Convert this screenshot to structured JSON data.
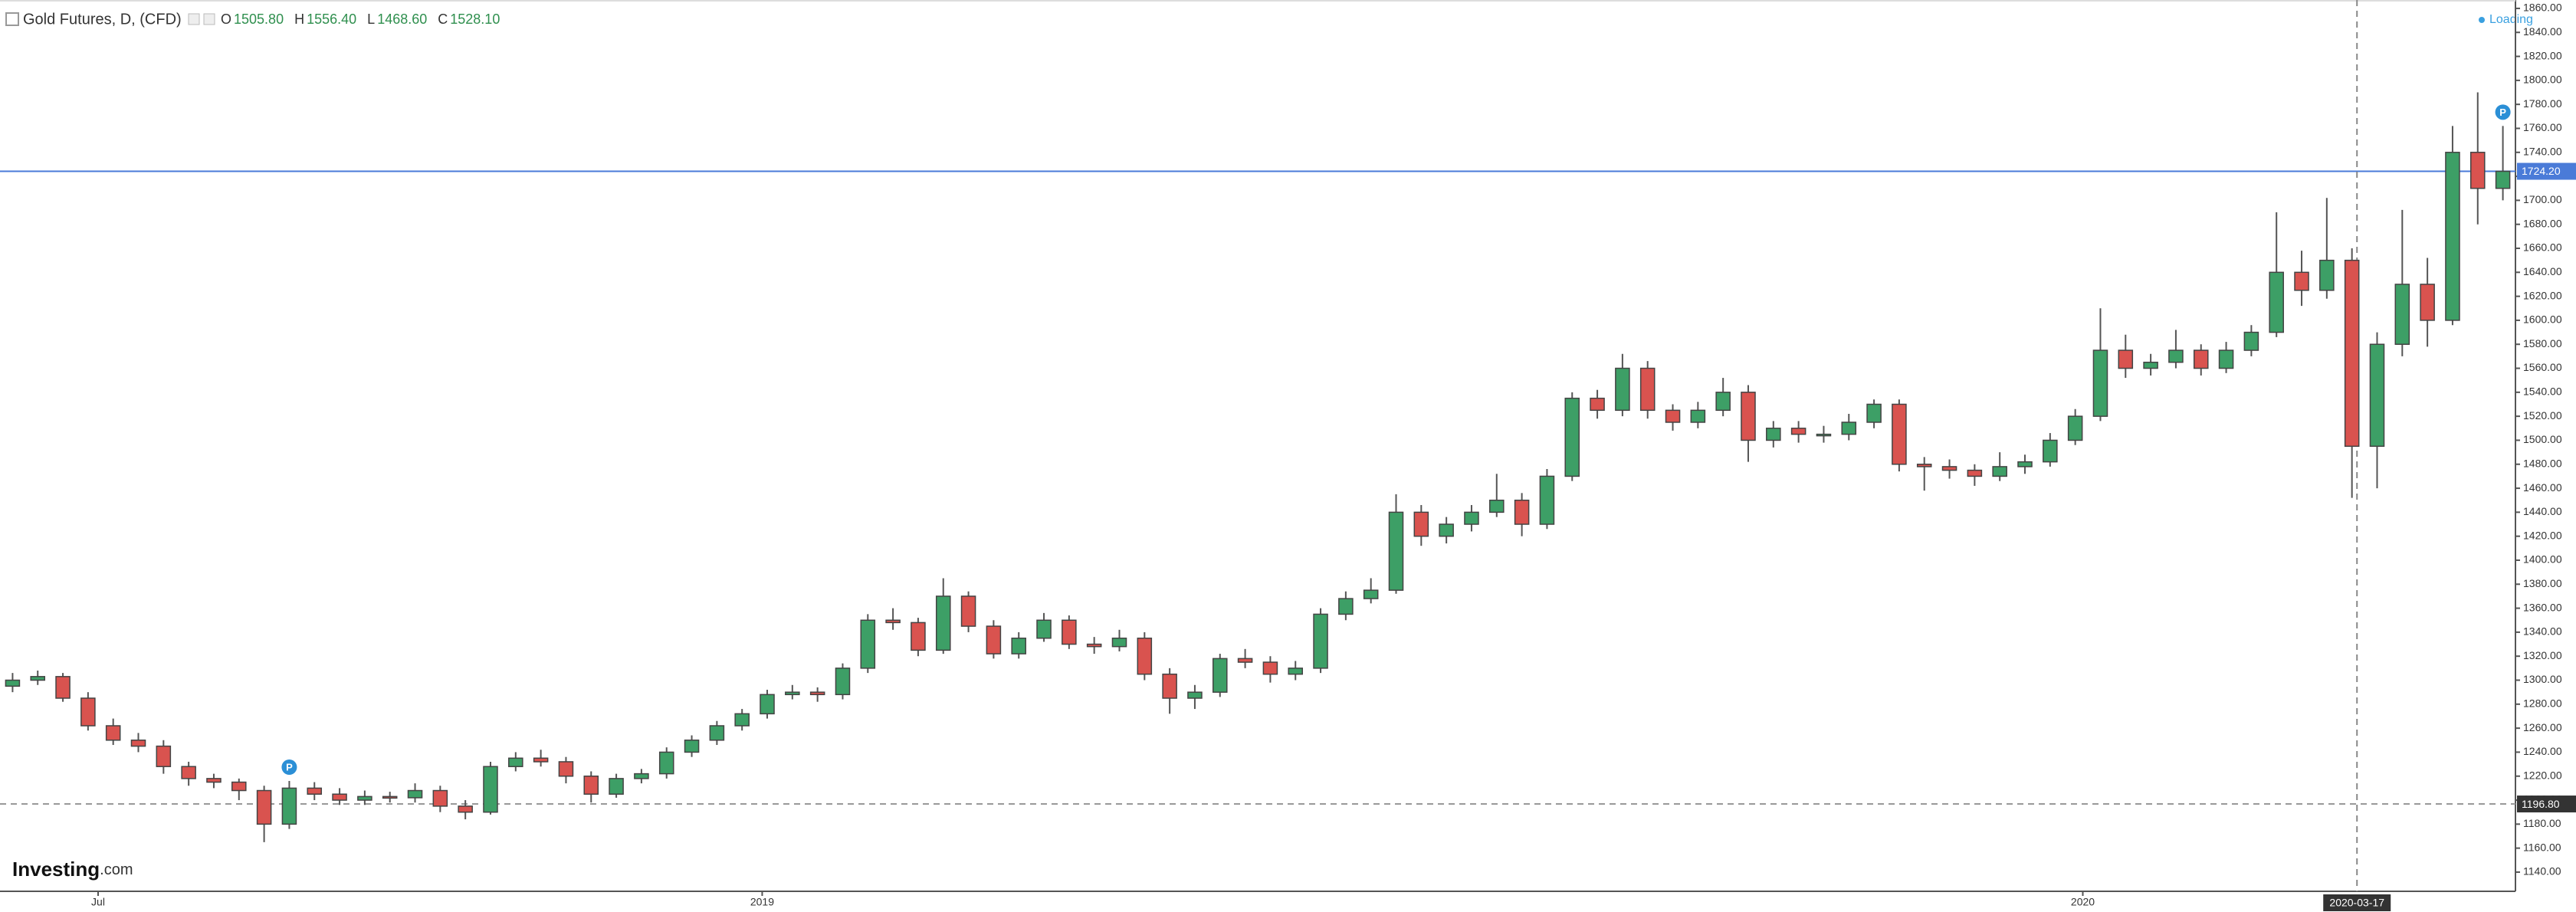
{
  "chart_data": {
    "type": "candlestick",
    "title": "Gold Futures, D, (CFD)",
    "ohlc": [
      {
        "key": "O",
        "text": "1505.80"
      },
      {
        "key": "H",
        "text": "1556.40"
      },
      {
        "key": "L",
        "text": "1468.60"
      },
      {
        "key": "C",
        "text": "1528.10"
      }
    ],
    "status": "Loading",
    "logo": {
      "name": "Investing",
      "suffix": ".com"
    },
    "up_color": "#3d9f66",
    "down_color": "#d9534f",
    "xlim": [
      0,
      100
    ],
    "xticks": [
      {
        "value": 3.9,
        "label": "Jul"
      },
      {
        "value": 30.3,
        "label": "2019"
      },
      {
        "value": 82.8,
        "label": "2020"
      }
    ],
    "ylim": [
      1124,
      1867
    ],
    "yticks": [
      {
        "value": 1140,
        "label": "1140.00"
      },
      {
        "value": 1160,
        "label": "1160.00"
      },
      {
        "value": 1180,
        "label": "1180.00"
      },
      {
        "value": 1200,
        "label": "1200.00"
      },
      {
        "value": 1220,
        "label": "1220.00"
      },
      {
        "value": 1240,
        "label": "1240.00"
      },
      {
        "value": 1260,
        "label": "1260.00"
      },
      {
        "value": 1280,
        "label": "1280.00"
      },
      {
        "value": 1300,
        "label": "1300.00"
      },
      {
        "value": 1320,
        "label": "1320.00"
      },
      {
        "value": 1340,
        "label": "1340.00"
      },
      {
        "value": 1360,
        "label": "1360.00"
      },
      {
        "value": 1380,
        "label": "1380.00"
      },
      {
        "value": 1400,
        "label": "1400.00"
      },
      {
        "value": 1420,
        "label": "1420.00"
      },
      {
        "value": 1440,
        "label": "1440.00"
      },
      {
        "value": 1460,
        "label": "1460.00"
      },
      {
        "value": 1480,
        "label": "1480.00"
      },
      {
        "value": 1500,
        "label": "1500.00"
      },
      {
        "value": 1520,
        "label": "1520.00"
      },
      {
        "value": 1540,
        "label": "1540.00"
      },
      {
        "value": 1560,
        "label": "1560.00"
      },
      {
        "value": 1580,
        "label": "1580.00"
      },
      {
        "value": 1600,
        "label": "1600.00"
      },
      {
        "value": 1620,
        "label": "1620.00"
      },
      {
        "value": 1640,
        "label": "1640.00"
      },
      {
        "value": 1660,
        "label": "1660.00"
      },
      {
        "value": 1680,
        "label": "1680.00"
      },
      {
        "value": 1700,
        "label": "1700.00"
      },
      {
        "value": 1720,
        "label": "1720.00"
      },
      {
        "value": 1740,
        "label": "1740.00"
      },
      {
        "value": 1760,
        "label": "1760.00"
      },
      {
        "value": 1780,
        "label": "1780.00"
      },
      {
        "value": 1800,
        "label": "1800.00"
      },
      {
        "value": 1820,
        "label": "1820.00"
      },
      {
        "value": 1840,
        "label": "1840.00"
      },
      {
        "value": 1860,
        "label": "1860.00"
      }
    ],
    "price_lines": [
      {
        "value": 1724.2,
        "label": "1724.20",
        "color": "#4a7bd8"
      },
      {
        "value": 1196.8,
        "label": "1196.80",
        "color": "#333333"
      }
    ],
    "crosshair": {
      "value": 93.7,
      "label": "2020-03-17"
    },
    "markers": [
      {
        "index": 11,
        "text": "P"
      },
      {
        "index": 99,
        "text": "P"
      }
    ],
    "open": [
      1295,
      1300,
      1303,
      1285,
      1262,
      1250,
      1245,
      1228,
      1218,
      1215,
      1208,
      1180,
      1210,
      1205,
      1200,
      1203,
      1202,
      1208,
      1195,
      1190,
      1228,
      1235,
      1232,
      1220,
      1205,
      1218,
      1222,
      1240,
      1250,
      1262,
      1272,
      1288,
      1290,
      1288,
      1310,
      1350,
      1348,
      1325,
      1370,
      1345,
      1322,
      1335,
      1350,
      1330,
      1328,
      1335,
      1305,
      1285,
      1290,
      1318,
      1315,
      1305,
      1310,
      1355,
      1368,
      1375,
      1440,
      1420,
      1430,
      1440,
      1450,
      1430,
      1470,
      1535,
      1525,
      1560,
      1525,
      1515,
      1525,
      1540,
      1500,
      1510,
      1505,
      1505,
      1515,
      1530,
      1480,
      1478,
      1475,
      1470,
      1478,
      1482,
      1500,
      1520,
      1575,
      1560,
      1565,
      1575,
      1560,
      1575,
      1590,
      1640,
      1625,
      1650,
      1495,
      1580,
      1630,
      1600,
      1740,
      1710
    ],
    "high": [
      1306,
      1308,
      1306,
      1290,
      1268,
      1256,
      1250,
      1232,
      1222,
      1218,
      1212,
      1216,
      1215,
      1210,
      1208,
      1207,
      1214,
      1212,
      1200,
      1232,
      1240,
      1242,
      1236,
      1224,
      1222,
      1226,
      1244,
      1254,
      1266,
      1276,
      1292,
      1296,
      1294,
      1314,
      1355,
      1360,
      1352,
      1385,
      1374,
      1350,
      1340,
      1356,
      1354,
      1336,
      1342,
      1340,
      1310,
      1296,
      1322,
      1326,
      1320,
      1316,
      1360,
      1374,
      1385,
      1455,
      1446,
      1436,
      1446,
      1472,
      1456,
      1476,
      1540,
      1542,
      1572,
      1566,
      1530,
      1532,
      1552,
      1546,
      1516,
      1516,
      1512,
      1522,
      1534,
      1534,
      1486,
      1484,
      1480,
      1490,
      1488,
      1506,
      1526,
      1610,
      1588,
      1572,
      1592,
      1580,
      1582,
      1596,
      1690,
      1658,
      1702,
      1660,
      1590,
      1692,
      1652,
      1762,
      1790,
      1762
    ],
    "low": [
      1290,
      1296,
      1282,
      1258,
      1246,
      1240,
      1222,
      1212,
      1210,
      1200,
      1165,
      1176,
      1200,
      1196,
      1196,
      1198,
      1198,
      1190,
      1184,
      1188,
      1224,
      1228,
      1214,
      1198,
      1202,
      1214,
      1218,
      1236,
      1246,
      1258,
      1268,
      1284,
      1282,
      1284,
      1306,
      1342,
      1320,
      1322,
      1340,
      1318,
      1318,
      1332,
      1326,
      1322,
      1324,
      1300,
      1272,
      1276,
      1286,
      1310,
      1298,
      1300,
      1306,
      1350,
      1364,
      1372,
      1412,
      1414,
      1424,
      1436,
      1420,
      1426,
      1466,
      1518,
      1520,
      1518,
      1508,
      1510,
      1520,
      1482,
      1494,
      1498,
      1498,
      1500,
      1510,
      1474,
      1458,
      1468,
      1462,
      1466,
      1472,
      1478,
      1496,
      1516,
      1552,
      1554,
      1560,
      1554,
      1556,
      1570,
      1586,
      1612,
      1618,
      1452,
      1460,
      1570,
      1578,
      1596,
      1680,
      1700
    ],
    "close": [
      1300,
      1303,
      1285,
      1262,
      1250,
      1245,
      1228,
      1218,
      1215,
      1208,
      1180,
      1210,
      1205,
      1200,
      1203,
      1202,
      1208,
      1195,
      1190,
      1228,
      1235,
      1232,
      1220,
      1205,
      1218,
      1222,
      1240,
      1250,
      1262,
      1272,
      1288,
      1290,
      1288,
      1310,
      1350,
      1348,
      1325,
      1370,
      1345,
      1322,
      1335,
      1350,
      1330,
      1328,
      1335,
      1305,
      1285,
      1290,
      1318,
      1315,
      1305,
      1310,
      1355,
      1368,
      1375,
      1440,
      1420,
      1430,
      1440,
      1450,
      1430,
      1470,
      1535,
      1525,
      1560,
      1525,
      1515,
      1525,
      1540,
      1500,
      1510,
      1505,
      1505,
      1515,
      1530,
      1480,
      1478,
      1475,
      1470,
      1478,
      1482,
      1500,
      1520,
      1575,
      1560,
      1565,
      1575,
      1560,
      1575,
      1590,
      1640,
      1625,
      1650,
      1495,
      1580,
      1630,
      1600,
      1740,
      1710,
      1724.2
    ]
  }
}
